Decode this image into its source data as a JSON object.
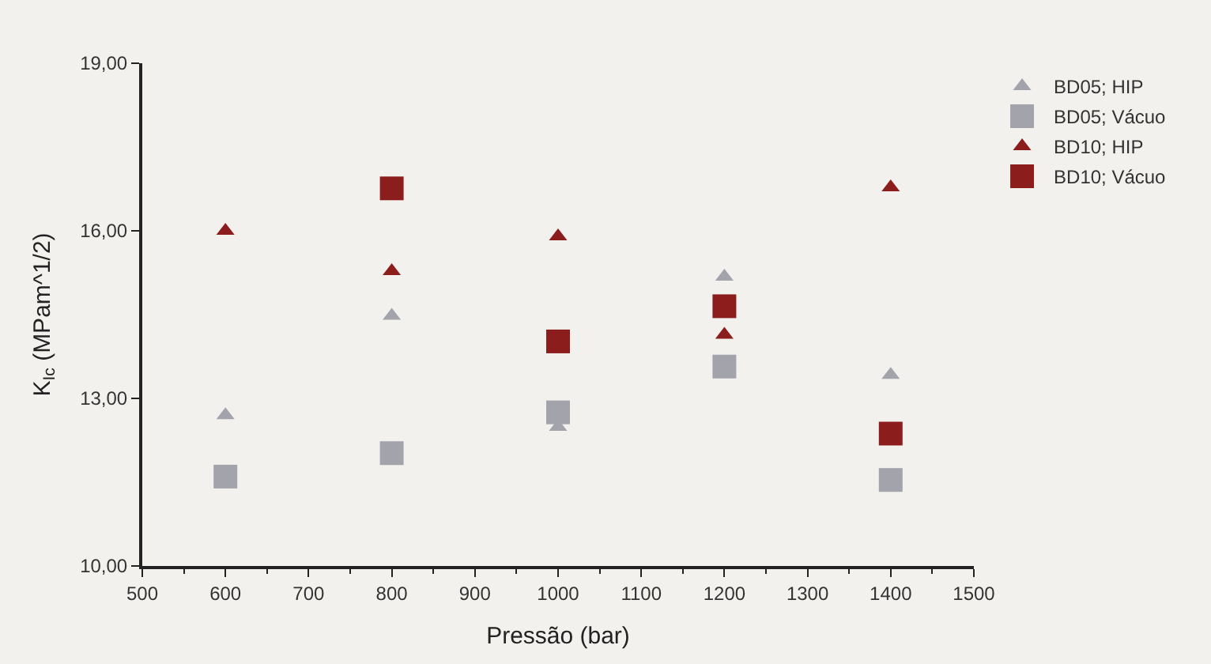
{
  "chart_data": {
    "type": "scatter",
    "xlabel": "Pressão (bar)",
    "ylabel": "K$_{Ic}$ (MPam^1/2)",
    "x": [
      600,
      800,
      1000,
      1200,
      1400
    ],
    "series": [
      {
        "name": "BD05; HIP",
        "color": "#a3a3ab",
        "marker": "triangle",
        "values": [
          12.7,
          14.48,
          12.49,
          15.18,
          13.42
        ]
      },
      {
        "name": "BD05; Vácuo",
        "color": "#a3a3ab",
        "marker": "square",
        "values": [
          11.6,
          12.02,
          12.75,
          13.57,
          11.54
        ]
      },
      {
        "name": "BD10; HIP",
        "color": "#8b1d1d",
        "marker": "triangle",
        "values": [
          16.0,
          15.28,
          15.9,
          14.14,
          16.78
        ]
      },
      {
        "name": "BD10; Vácuo",
        "color": "#8b1d1d",
        "marker": "square",
        "values": [
          null,
          16.76,
          14.02,
          14.65,
          12.37
        ]
      }
    ],
    "xlim": [
      500,
      1500
    ],
    "xticks": [
      500,
      600,
      700,
      800,
      900,
      1000,
      1100,
      1200,
      1300,
      1400,
      1500
    ],
    "ylim": [
      10,
      19
    ],
    "yticks": [
      {
        "value": 10,
        "label": "10,00"
      },
      {
        "value": 13,
        "label": "13,00"
      },
      {
        "value": 16,
        "label": "16,00"
      },
      {
        "value": 19,
        "label": "19,00"
      }
    ],
    "grid": false,
    "legend": "right"
  }
}
